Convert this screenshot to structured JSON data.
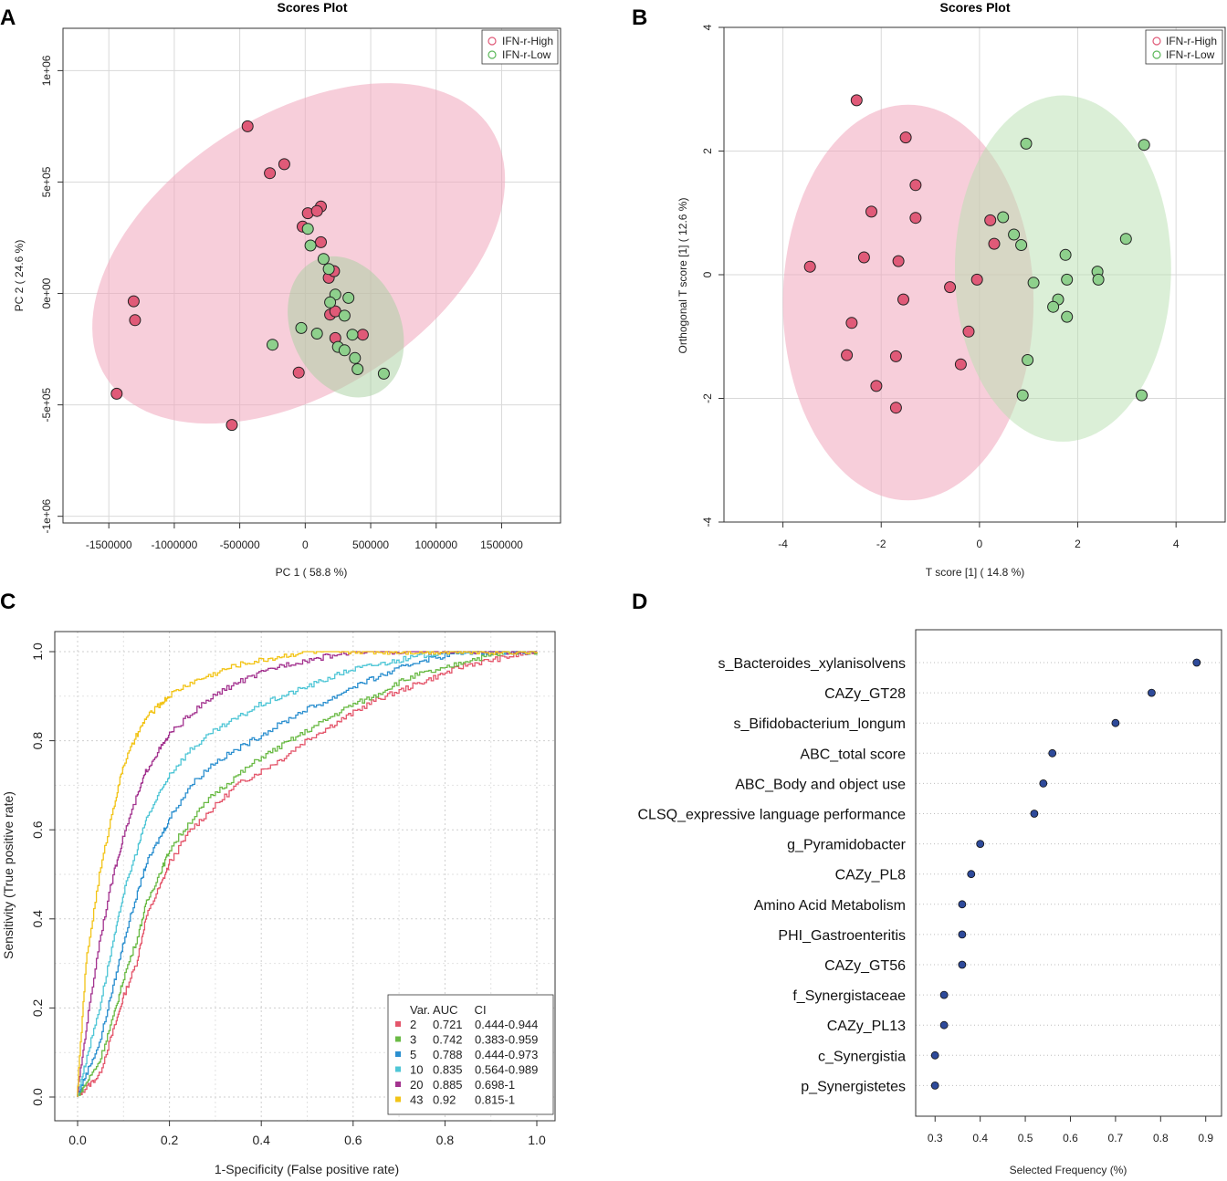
{
  "chart_data": [
    {
      "panel": "A",
      "type": "scatter",
      "title": "Scores Plot",
      "xlabel": "PC 1 ( 58.8 %)",
      "ylabel": "PC 2 ( 24.6 %)",
      "xlim": [
        -1850000,
        1950000
      ],
      "ylim": [
        -1030000,
        1190000
      ],
      "xticks": [
        -1500000,
        -1000000,
        -500000,
        0,
        500000,
        1000000,
        1500000
      ],
      "xtick_labels": [
        "-1500000",
        "-1000000",
        "-500000",
        "0",
        "500000",
        "1000000",
        "1500000"
      ],
      "yticks": [
        -1000000,
        -500000,
        0,
        500000,
        1000000
      ],
      "ytick_labels": [
        "-1e+06",
        "-5e+05",
        "0e+00",
        "5e+05",
        "1e+06"
      ],
      "legend": {
        "position": "top-right",
        "entries": [
          "IFN-r-High",
          "IFN-r-Low"
        ]
      },
      "colors": {
        "high_fill": "#e05a78",
        "high_ellipse": "#f0a5bb",
        "low_fill": "#8ed08c",
        "low_ellipse": "#a8d8a0"
      },
      "ellipses": [
        {
          "group": "IFN-r-High",
          "center": [
            -50000,
            180000
          ],
          "semi_axes": [
            1750000,
            620000
          ],
          "angle_deg": 33
        },
        {
          "group": "IFN-r-Low",
          "center": [
            310000,
            -150000
          ],
          "semi_axes": [
            560000,
            245000
          ],
          "angle_deg": -66
        }
      ],
      "series": [
        {
          "name": "IFN-r-High",
          "points": [
            [
              -440000,
              750000
            ],
            [
              -270000,
              540000
            ],
            [
              -160000,
              580000
            ],
            [
              120000,
              390000
            ],
            [
              20000,
              360000
            ],
            [
              90000,
              370000
            ],
            [
              -20000,
              300000
            ],
            [
              120000,
              230000
            ],
            [
              180000,
              70000
            ],
            [
              220000,
              100000
            ],
            [
              -1310000,
              -35000
            ],
            [
              -1300000,
              -120000
            ],
            [
              190000,
              -95000
            ],
            [
              230000,
              -80000
            ],
            [
              230000,
              -200000
            ],
            [
              440000,
              -185000
            ],
            [
              -50000,
              -355000
            ],
            [
              -1440000,
              -450000
            ],
            [
              -560000,
              -590000
            ]
          ]
        },
        {
          "name": "IFN-r-Low",
          "points": [
            [
              20000,
              290000
            ],
            [
              40000,
              215000
            ],
            [
              140000,
              155000
            ],
            [
              180000,
              110000
            ],
            [
              230000,
              -5000
            ],
            [
              330000,
              -20000
            ],
            [
              190000,
              -40000
            ],
            [
              300000,
              -100000
            ],
            [
              -30000,
              -155000
            ],
            [
              90000,
              -180000
            ],
            [
              360000,
              -185000
            ],
            [
              250000,
              -240000
            ],
            [
              300000,
              -255000
            ],
            [
              -250000,
              -230000
            ],
            [
              380000,
              -290000
            ],
            [
              400000,
              -340000
            ],
            [
              600000,
              -360000
            ]
          ]
        }
      ]
    },
    {
      "panel": "B",
      "type": "scatter",
      "title": "Scores Plot",
      "xlabel": "T score [1] ( 14.8 %)",
      "ylabel": "Orthogonal T score [1] ( 12.6 %)",
      "xlim": [
        -5.2,
        5.0
      ],
      "ylim": [
        -4.0,
        4.0
      ],
      "xticks": [
        -4,
        -2,
        0,
        2,
        4
      ],
      "xtick_labels": [
        "-4",
        "-2",
        "0",
        "2",
        "4"
      ],
      "yticks": [
        -4,
        -2,
        0,
        2,
        4
      ],
      "ytick_labels": [
        "-4",
        "-2",
        "0",
        "2",
        "4"
      ],
      "legend": {
        "position": "top-right",
        "entries": [
          "IFN-r-High",
          "IFN-r-Low"
        ]
      },
      "ellipses": [
        {
          "group": "IFN-r-High",
          "center": [
            -1.45,
            -0.45
          ],
          "semi_axes": [
            2.55,
            3.2
          ],
          "angle_deg": 0
        },
        {
          "group": "IFN-r-Low",
          "center": [
            1.7,
            0.1
          ],
          "semi_axes": [
            2.2,
            2.8
          ],
          "angle_deg": 0
        }
      ],
      "series": [
        {
          "name": "IFN-r-High",
          "points": [
            [
              -2.5,
              2.82
            ],
            [
              -1.5,
              2.22
            ],
            [
              -1.3,
              1.45
            ],
            [
              -2.2,
              1.02
            ],
            [
              -1.3,
              0.92
            ],
            [
              0.22,
              0.88
            ],
            [
              0.3,
              0.5
            ],
            [
              -2.35,
              0.28
            ],
            [
              -1.65,
              0.22
            ],
            [
              -3.45,
              0.13
            ],
            [
              -0.6,
              -0.2
            ],
            [
              -0.05,
              -0.08
            ],
            [
              -1.55,
              -0.4
            ],
            [
              -2.6,
              -0.78
            ],
            [
              -0.22,
              -0.92
            ],
            [
              -2.7,
              -1.3
            ],
            [
              -1.7,
              -1.32
            ],
            [
              -0.38,
              -1.45
            ],
            [
              -2.1,
              -1.8
            ],
            [
              -1.7,
              -2.15
            ]
          ]
        },
        {
          "name": "IFN-r-Low",
          "points": [
            [
              0.95,
              2.12
            ],
            [
              3.35,
              2.1
            ],
            [
              0.48,
              0.93
            ],
            [
              0.7,
              0.65
            ],
            [
              0.85,
              0.48
            ],
            [
              2.98,
              0.58
            ],
            [
              1.75,
              0.32
            ],
            [
              2.4,
              0.05
            ],
            [
              2.42,
              -0.08
            ],
            [
              1.78,
              -0.08
            ],
            [
              1.1,
              -0.13
            ],
            [
              1.6,
              -0.4
            ],
            [
              1.5,
              -0.52
            ],
            [
              1.78,
              -0.68
            ],
            [
              0.98,
              -1.38
            ],
            [
              0.88,
              -1.95
            ],
            [
              3.3,
              -1.95
            ]
          ]
        }
      ]
    },
    {
      "panel": "C",
      "type": "line",
      "title": "",
      "xlabel": "1-Specificity (False positive rate)",
      "ylabel": "Sensitivity (True positive rate)",
      "xlim": [
        0,
        1
      ],
      "ylim": [
        0,
        1
      ],
      "xticks": [
        0,
        0.2,
        0.4,
        0.6,
        0.8,
        1
      ],
      "xtick_labels": [
        "0.0",
        "0.2",
        "0.4",
        "0.6",
        "0.8",
        "1.0"
      ],
      "yticks": [
        0,
        0.2,
        0.4,
        0.6,
        0.8,
        1
      ],
      "ytick_labels": [
        "0.0",
        "0.2",
        "0.4",
        "0.6",
        "0.8",
        "1.0"
      ],
      "legend": {
        "position": "bottom-right",
        "header": "Var. AUC     CI"
      },
      "series": [
        {
          "name": "2",
          "var": "2",
          "auc": "0.721",
          "ci": "0.444-0.944",
          "color": "#e4566b",
          "x": [
            0,
            0.02,
            0.05,
            0.08,
            0.1,
            0.13,
            0.15,
            0.18,
            0.2,
            0.25,
            0.3,
            0.35,
            0.4,
            0.45,
            0.5,
            0.55,
            0.6,
            0.65,
            0.7,
            0.75,
            0.8,
            0.85,
            0.9,
            0.95,
            1
          ],
          "y": [
            0,
            0.02,
            0.05,
            0.15,
            0.22,
            0.3,
            0.4,
            0.47,
            0.52,
            0.6,
            0.65,
            0.7,
            0.73,
            0.76,
            0.8,
            0.83,
            0.86,
            0.89,
            0.91,
            0.93,
            0.95,
            0.97,
            0.98,
            0.99,
            1
          ]
        },
        {
          "name": "3",
          "var": "3",
          "auc": "0.742",
          "ci": "0.383-0.959",
          "color": "#6aba45",
          "x": [
            0,
            0.02,
            0.05,
            0.08,
            0.1,
            0.13,
            0.15,
            0.18,
            0.2,
            0.25,
            0.3,
            0.35,
            0.4,
            0.45,
            0.5,
            0.55,
            0.6,
            0.65,
            0.7,
            0.75,
            0.8,
            0.85,
            0.9,
            0.95,
            1
          ],
          "y": [
            0,
            0.03,
            0.08,
            0.18,
            0.26,
            0.35,
            0.43,
            0.5,
            0.55,
            0.62,
            0.68,
            0.72,
            0.76,
            0.79,
            0.82,
            0.85,
            0.88,
            0.9,
            0.93,
            0.95,
            0.96,
            0.98,
            0.99,
            1,
            1
          ]
        },
        {
          "name": "5",
          "var": "5",
          "auc": "0.788",
          "ci": "0.444-0.973",
          "color": "#2b8fcf",
          "x": [
            0,
            0.02,
            0.05,
            0.08,
            0.1,
            0.13,
            0.15,
            0.18,
            0.2,
            0.25,
            0.3,
            0.35,
            0.4,
            0.45,
            0.5,
            0.55,
            0.6,
            0.65,
            0.7,
            0.75,
            0.8,
            0.85,
            0.9,
            0.95,
            1
          ],
          "y": [
            0,
            0.05,
            0.12,
            0.25,
            0.34,
            0.45,
            0.52,
            0.58,
            0.62,
            0.7,
            0.75,
            0.78,
            0.81,
            0.84,
            0.87,
            0.89,
            0.92,
            0.94,
            0.96,
            0.98,
            0.99,
            1,
            1,
            1,
            1
          ]
        },
        {
          "name": "10",
          "var": "10",
          "auc": "0.835",
          "ci": "0.564-0.989",
          "color": "#4fc6d6",
          "x": [
            0,
            0.02,
            0.05,
            0.08,
            0.1,
            0.13,
            0.15,
            0.18,
            0.2,
            0.25,
            0.3,
            0.35,
            0.4,
            0.45,
            0.5,
            0.55,
            0.6,
            0.65,
            0.7,
            0.75,
            0.8,
            0.85,
            0.9,
            0.95,
            1
          ],
          "y": [
            0,
            0.08,
            0.2,
            0.35,
            0.45,
            0.55,
            0.62,
            0.68,
            0.72,
            0.78,
            0.82,
            0.85,
            0.88,
            0.9,
            0.92,
            0.94,
            0.96,
            0.97,
            0.98,
            0.99,
            1,
            1,
            1,
            1,
            1
          ]
        },
        {
          "name": "20",
          "var": "20",
          "auc": "0.885",
          "ci": "0.698-1",
          "color": "#a3338f",
          "x": [
            0,
            0.02,
            0.05,
            0.08,
            0.1,
            0.13,
            0.15,
            0.18,
            0.2,
            0.25,
            0.3,
            0.35,
            0.4,
            0.45,
            0.5,
            0.55,
            0.6,
            0.65,
            0.7,
            0.75,
            0.8,
            0.85,
            0.9,
            0.95,
            1
          ],
          "y": [
            0,
            0.15,
            0.35,
            0.5,
            0.58,
            0.67,
            0.73,
            0.78,
            0.81,
            0.86,
            0.9,
            0.93,
            0.95,
            0.97,
            0.98,
            0.99,
            1,
            1,
            1,
            1,
            1,
            1,
            1,
            1,
            1
          ]
        },
        {
          "name": "43",
          "var": "43",
          "auc": "0.92",
          "ci": "0.815-1",
          "color": "#f2c417",
          "x": [
            0,
            0.02,
            0.05,
            0.08,
            0.1,
            0.13,
            0.15,
            0.18,
            0.2,
            0.25,
            0.3,
            0.35,
            0.4,
            0.45,
            0.5,
            0.55,
            0.6,
            0.65,
            0.7,
            0.75,
            0.8,
            0.85,
            0.9,
            0.95,
            1
          ],
          "y": [
            0,
            0.3,
            0.5,
            0.65,
            0.74,
            0.81,
            0.85,
            0.88,
            0.9,
            0.93,
            0.95,
            0.97,
            0.98,
            0.99,
            1,
            1,
            1,
            1,
            1,
            1,
            1,
            1,
            1,
            1,
            1
          ]
        }
      ]
    },
    {
      "panel": "D",
      "type": "scatter",
      "title": "",
      "xlabel": "Selected Frequency (%)",
      "ylabel": "",
      "xlim": [
        0.257,
        0.935
      ],
      "xticks": [
        0.3,
        0.4,
        0.5,
        0.6,
        0.7,
        0.8,
        0.9
      ],
      "xtick_labels": [
        "0.3",
        "0.4",
        "0.5",
        "0.6",
        "0.7",
        "0.8",
        "0.9"
      ],
      "categories": [
        "s_Bacteroides_xylanisolvens",
        "CAZy_GT28",
        "s_Bifidobacterium_longum",
        "ABC_total score",
        "ABC_Body and object use",
        "CLSQ_expressive language performance",
        "g_Pyramidobacter",
        "CAZy_PL8",
        "Amino Acid Metabolism",
        "PHI_Gastroenteritis",
        "CAZy_GT56",
        "f_Synergistaceae",
        "CAZy_PL13",
        "c_Synergistia",
        "p_Synergistetes"
      ],
      "values": [
        0.88,
        0.78,
        0.7,
        0.56,
        0.54,
        0.52,
        0.4,
        0.38,
        0.36,
        0.36,
        0.36,
        0.32,
        0.32,
        0.3,
        0.3
      ],
      "point_color": "#2e4a9a"
    }
  ],
  "panel_labels": [
    "A",
    "B",
    "C",
    "D"
  ]
}
